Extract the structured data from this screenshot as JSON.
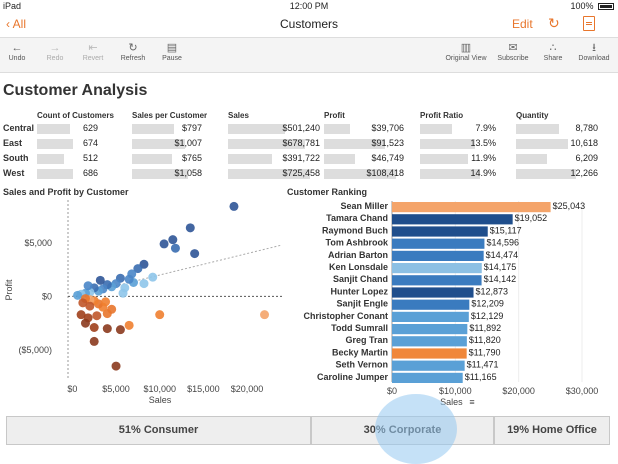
{
  "status_bar": {
    "carrier": "iPad",
    "time": "12:00 PM",
    "battery": "100%"
  },
  "nav": {
    "back_label": "All",
    "title": "Customers",
    "edit_label": "Edit"
  },
  "toolbar": {
    "undo": "Undo",
    "redo": "Redo",
    "revert": "Revert",
    "refresh": "Refresh",
    "pause": "Pause",
    "original_view": "Original View",
    "subscribe": "Subscribe",
    "share": "Share",
    "download": "Download"
  },
  "page_title": "Customer Analysis",
  "kpi": {
    "headers": [
      "Count of Customers",
      "Sales per Customer",
      "Sales",
      "Profit",
      "Profit Ratio",
      "Quantity"
    ],
    "rows": [
      {
        "region": "Central",
        "values": [
          "629",
          "$797",
          "$501,240",
          "$39,706",
          "7.9%",
          "8,780"
        ],
        "fill": [
          0.59,
          0.75,
          0.69,
          0.36,
          0.53,
          0.72
        ]
      },
      {
        "region": "East",
        "values": [
          "674",
          "$1,007",
          "$678,781",
          "$91,523",
          "13.5%",
          "10,618"
        ],
        "fill": [
          0.64,
          0.95,
          0.94,
          0.85,
          0.91,
          0.87
        ]
      },
      {
        "region": "South",
        "values": [
          "512",
          "$765",
          "$391,722",
          "$46,749",
          "11.9%",
          "6,209"
        ],
        "fill": [
          0.48,
          0.72,
          0.54,
          0.43,
          0.8,
          0.51
        ]
      },
      {
        "region": "West",
        "values": [
          "686",
          "$1,058",
          "$725,458",
          "$108,418",
          "14.9%",
          "12,266"
        ],
        "fill": [
          0.65,
          1.0,
          1.0,
          1.0,
          1.0,
          1.0
        ]
      }
    ]
  },
  "scatter": {
    "title": "Sales and Profit by Customer",
    "xlabel": "Sales",
    "ylabel": "Profit",
    "xticks": [
      "$0",
      "$5,000",
      "$10,000",
      "$15,000",
      "$20,000"
    ],
    "yticks": [
      "$5,000",
      "$0",
      "($5,000)"
    ]
  },
  "ranking": {
    "title": "Customer Ranking",
    "xlabel": "Sales",
    "xticks": [
      "$0",
      "$10,000",
      "$20,000",
      "$30,000"
    ]
  },
  "segments": [
    {
      "label": "51% Consumer"
    },
    {
      "label": "30% Corporate"
    },
    {
      "label": "19% Home Office"
    }
  ],
  "chart_data": [
    {
      "type": "bar",
      "title": "Customer Ranking",
      "xlabel": "Sales",
      "xlim": [
        0,
        30000
      ],
      "categories": [
        "Sean Miller",
        "Tamara Chand",
        "Raymond Buch",
        "Tom Ashbrook",
        "Adrian Barton",
        "Ken Lonsdale",
        "Sanjit Chand",
        "Hunter Lopez",
        "Sanjit Engle",
        "Christopher Conant",
        "Todd Sumrall",
        "Greg Tran",
        "Becky Martin",
        "Seth Vernon",
        "Caroline Jumper"
      ],
      "values": [
        25043,
        19052,
        15117,
        14596,
        14474,
        14175,
        14142,
        12873,
        12209,
        12129,
        11892,
        11820,
        11790,
        11471,
        11165
      ],
      "labels": [
        "$25,043",
        "$19,052",
        "$15,117",
        "$14,596",
        "$14,474",
        "$14,175",
        "$14,142",
        "$12,873",
        "$12,209",
        "$12,129",
        "$11,892",
        "$11,820",
        "$11,790",
        "$11,471",
        "$11,165"
      ],
      "colors": [
        "#f4a46a",
        "#1f4e8c",
        "#1f4e8c",
        "#3a7bbf",
        "#3a7bbf",
        "#8cc0e4",
        "#3a7bbf",
        "#1f4e8c",
        "#3a7bbf",
        "#5aa0d6",
        "#5aa0d6",
        "#5aa0d6",
        "#f0873a",
        "#5aa0d6",
        "#5aa0d6"
      ]
    },
    {
      "type": "scatter",
      "title": "Sales and Profit by Customer",
      "xlabel": "Sales",
      "ylabel": "Profit",
      "xlim": [
        -500,
        24000
      ],
      "ylim": [
        -7800,
        9000
      ],
      "points": [
        {
          "x": 18500,
          "y": 8400,
          "color": "#2f5597"
        },
        {
          "x": 13500,
          "y": 6400,
          "color": "#2f5597"
        },
        {
          "x": 14000,
          "y": 4000,
          "color": "#2f5597"
        },
        {
          "x": 11500,
          "y": 5300,
          "color": "#2f5597"
        },
        {
          "x": 10500,
          "y": 4900,
          "color": "#2f5597"
        },
        {
          "x": 11800,
          "y": 4500,
          "color": "#3a6db0"
        },
        {
          "x": 8200,
          "y": 3000,
          "color": "#2f5597"
        },
        {
          "x": 7500,
          "y": 2600,
          "color": "#3a6db0"
        },
        {
          "x": 6800,
          "y": 2100,
          "color": "#4a86c8"
        },
        {
          "x": 9200,
          "y": 1800,
          "color": "#8ec5ea"
        },
        {
          "x": 8200,
          "y": 1200,
          "color": "#8ec5ea"
        },
        {
          "x": 7000,
          "y": 1300,
          "color": "#5aa0d6"
        },
        {
          "x": 5500,
          "y": 1700,
          "color": "#3a6db0"
        },
        {
          "x": 5000,
          "y": 1200,
          "color": "#4a86c8"
        },
        {
          "x": 4500,
          "y": 900,
          "color": "#5aa0d6"
        },
        {
          "x": 4000,
          "y": 1100,
          "color": "#3a6db0"
        },
        {
          "x": 3500,
          "y": 700,
          "color": "#4a86c8"
        },
        {
          "x": 3000,
          "y": 500,
          "color": "#5aa0d6"
        },
        {
          "x": 2500,
          "y": 800,
          "color": "#3a6db0"
        },
        {
          "x": 2000,
          "y": 400,
          "color": "#8ec5ea"
        },
        {
          "x": 1500,
          "y": 300,
          "color": "#5aa0d6"
        },
        {
          "x": 1000,
          "y": 200,
          "color": "#8ec5ea"
        },
        {
          "x": 600,
          "y": 100,
          "color": "#5aa0d6"
        },
        {
          "x": 3200,
          "y": 1500,
          "color": "#2f5597"
        },
        {
          "x": 6000,
          "y": 800,
          "color": "#8ec5ea"
        },
        {
          "x": 5800,
          "y": 300,
          "color": "#8ec5ea"
        },
        {
          "x": 1800,
          "y": 1000,
          "color": "#4a86c8"
        },
        {
          "x": 6500,
          "y": 1600,
          "color": "#4a86c8"
        },
        {
          "x": 22000,
          "y": -1700,
          "color": "#f4a46a"
        },
        {
          "x": 10000,
          "y": -1700,
          "color": "#f08030"
        },
        {
          "x": 6500,
          "y": -2700,
          "color": "#f08030"
        },
        {
          "x": 4000,
          "y": -1600,
          "color": "#e8762c"
        },
        {
          "x": 3500,
          "y": -1000,
          "color": "#f08030"
        },
        {
          "x": 3000,
          "y": -700,
          "color": "#e8762c"
        },
        {
          "x": 2500,
          "y": -400,
          "color": "#f08030"
        },
        {
          "x": 2000,
          "y": -300,
          "color": "#f4a46a"
        },
        {
          "x": 1500,
          "y": -200,
          "color": "#e8762c"
        },
        {
          "x": 1200,
          "y": -600,
          "color": "#c0562a"
        },
        {
          "x": 2000,
          "y": -900,
          "color": "#c0562a"
        },
        {
          "x": 1000,
          "y": -1700,
          "color": "#a0401c"
        },
        {
          "x": 1800,
          "y": -2000,
          "color": "#a0401c"
        },
        {
          "x": 2800,
          "y": -1800,
          "color": "#c0562a"
        },
        {
          "x": 1500,
          "y": -2500,
          "color": "#8b3a1e"
        },
        {
          "x": 2500,
          "y": -2900,
          "color": "#a0401c"
        },
        {
          "x": 4000,
          "y": -3000,
          "color": "#8b3a1e"
        },
        {
          "x": 5500,
          "y": -3100,
          "color": "#8b3a1e"
        },
        {
          "x": 2500,
          "y": -4200,
          "color": "#8b3a1e"
        },
        {
          "x": 5000,
          "y": -6500,
          "color": "#8b3a1e"
        },
        {
          "x": 4500,
          "y": -1200,
          "color": "#e8762c"
        },
        {
          "x": 3800,
          "y": -500,
          "color": "#f08030"
        }
      ]
    }
  ]
}
